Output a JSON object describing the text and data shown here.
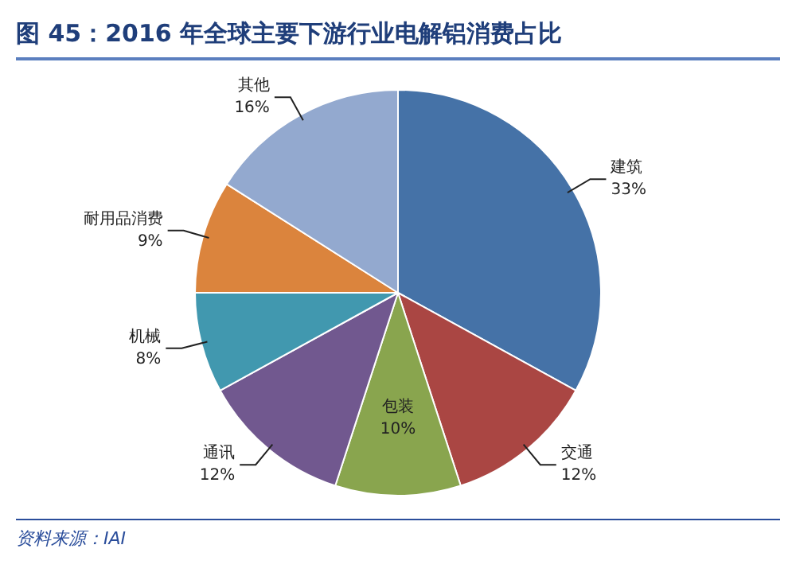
{
  "chart_data": {
    "type": "pie",
    "title": "图 45：2016 年全球主要下游行业电解铝消费占比",
    "categories": [
      "建筑",
      "交通",
      "包装",
      "通讯",
      "机械",
      "耐用品消费",
      "其他"
    ],
    "values": [
      33,
      12,
      10,
      12,
      8,
      9,
      16
    ],
    "value_labels": [
      "33%",
      "12%",
      "10%",
      "12%",
      "8%",
      "9%",
      "16%"
    ],
    "colors": [
      "#4572a7",
      "#aa4643",
      "#89a54e",
      "#71588f",
      "#4198af",
      "#db843d",
      "#93a9cf"
    ],
    "legend": false,
    "annotations": [
      "资料来源：IAI"
    ]
  }
}
